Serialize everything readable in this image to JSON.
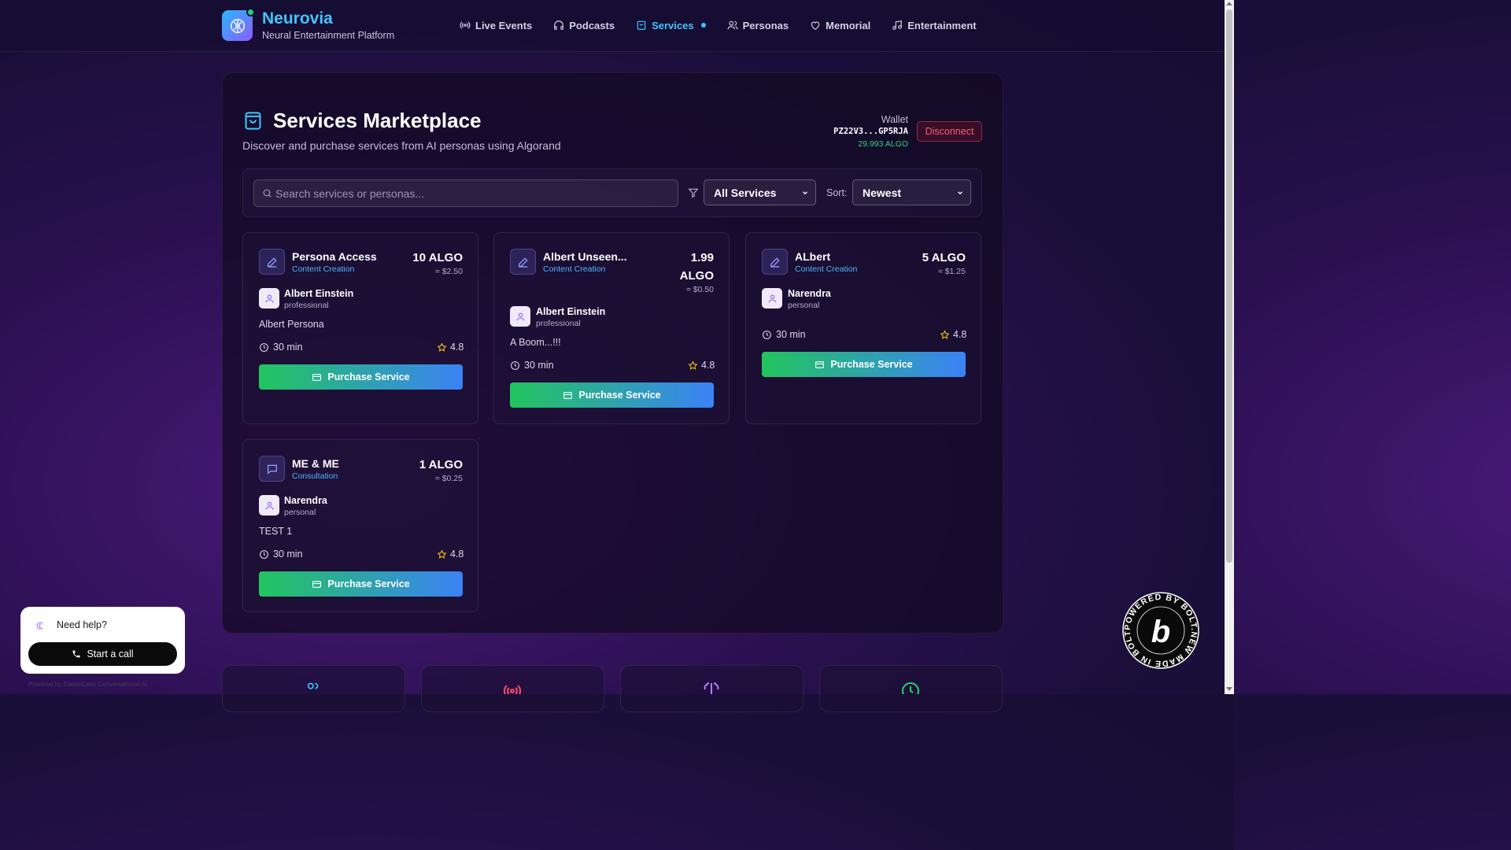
{
  "brand": {
    "name": "Neurovia",
    "tagline": "Neural Entertainment Platform"
  },
  "nav": {
    "items": [
      {
        "label": "Live Events",
        "icon": "broadcast-icon"
      },
      {
        "label": "Podcasts",
        "icon": "headphones-icon"
      },
      {
        "label": "Services",
        "icon": "shopping-bag-icon",
        "active": true
      },
      {
        "label": "Personas",
        "icon": "users-icon"
      },
      {
        "label": "Memorial",
        "icon": "heart-icon"
      },
      {
        "label": "Entertainment",
        "icon": "music-icon"
      }
    ]
  },
  "page": {
    "title": "Services Marketplace",
    "subtitle": "Discover and purchase services from AI personas using Algorand"
  },
  "wallet": {
    "label": "Wallet",
    "address": "PZ22V3...GP5RJA",
    "balance": "29.993 ALGO",
    "disconnect_label": "Disconnect"
  },
  "filters": {
    "search_placeholder": "Search services or personas...",
    "category_selected": "All Services",
    "sort_label": "Sort:",
    "sort_selected": "Newest"
  },
  "cards": [
    {
      "name": "Persona Access",
      "category": "Content Creation",
      "price": "10 ALGO",
      "usd": "≈ $2.50",
      "persona": "Albert Einstein",
      "persona_type": "professional",
      "description": "Albert Persona",
      "duration": "30 min",
      "rating": "4.8",
      "button": "Purchase Service",
      "icon": "pencil-icon"
    },
    {
      "name": "Albert Unseen...",
      "category": "Content Creation",
      "price_line1": "1.99",
      "price_line2": "ALGO",
      "usd": "≈ $0.50",
      "persona": "Albert Einstein",
      "persona_type": "professional",
      "description": "A Boom...!!!",
      "duration": "30 min",
      "rating": "4.8",
      "button": "Purchase Service",
      "icon": "pencil-icon"
    },
    {
      "name": "ALbert",
      "category": "Content Creation",
      "price": "5 ALGO",
      "usd": "≈ $1.25",
      "persona": "Narendra",
      "persona_type": "personal",
      "duration": "30 min",
      "rating": "4.8",
      "button": "Purchase Service",
      "icon": "pencil-icon"
    },
    {
      "name": "ME & ME",
      "category": "Consultation",
      "price": "1 ALGO",
      "usd": "≈ $0.25",
      "persona": "Narendra",
      "persona_type": "personal",
      "description": "TEST 1",
      "duration": "30 min",
      "rating": "4.8",
      "button": "Purchase Service",
      "icon": "chat-icon"
    }
  ],
  "help": {
    "text": "Need help?",
    "button": "Start a call",
    "powered": "Powered by ElevenLabs Conversational AI"
  },
  "colors": {
    "accent": "#3ec6ff",
    "success": "#22c55e",
    "button_end": "#3b82f6",
    "danger": "#ff5c70"
  }
}
